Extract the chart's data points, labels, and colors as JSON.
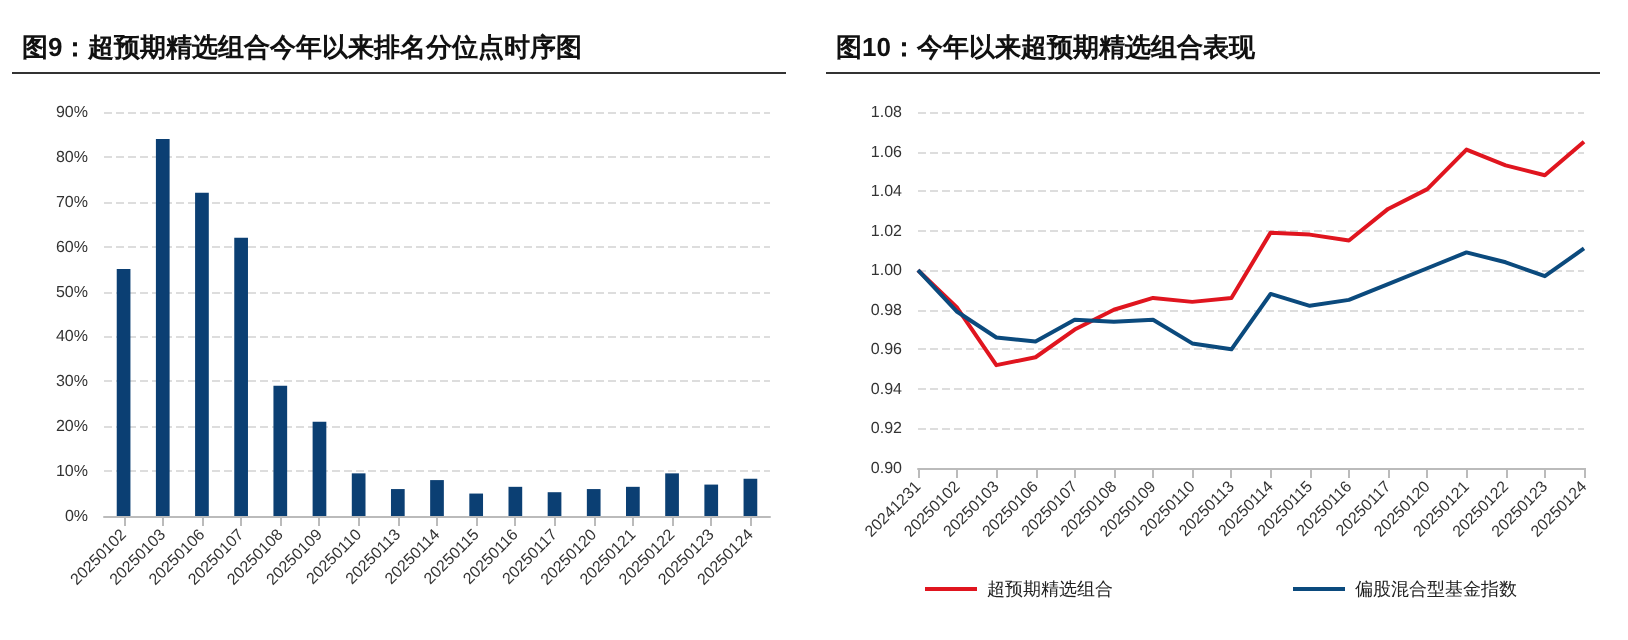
{
  "chart_data": [
    {
      "type": "bar",
      "title": "图9：超预期精选组合今年以来排名分位点时序图",
      "categories": [
        "20250102",
        "20250103",
        "20250106",
        "20250107",
        "20250108",
        "20250109",
        "20250110",
        "20250113",
        "20250114",
        "20250115",
        "20250116",
        "20250117",
        "20250120",
        "20250121",
        "20250122",
        "20250123",
        "20250124"
      ],
      "series": [
        {
          "color": "#0b3f73",
          "values": [
            55,
            84,
            72,
            62,
            29,
            21,
            9.5,
            6,
            8,
            5,
            6.5,
            5.3,
            6,
            6.5,
            9.5,
            7,
            8.3
          ]
        }
      ],
      "ylim": [
        0,
        90
      ],
      "yticks": [
        {
          "value": 0,
          "label": "0%"
        },
        {
          "value": 10,
          "label": "10%"
        },
        {
          "value": 20,
          "label": "20%"
        },
        {
          "value": 30,
          "label": "30%"
        },
        {
          "value": 40,
          "label": "40%"
        },
        {
          "value": 50,
          "label": "50%"
        },
        {
          "value": 60,
          "label": "60%"
        },
        {
          "value": 70,
          "label": "70%"
        },
        {
          "value": 80,
          "label": "80%"
        },
        {
          "value": 90,
          "label": "90%"
        }
      ],
      "grid": "y",
      "legend": false
    },
    {
      "type": "line",
      "title": "图10：今年以来超预期精选组合表现",
      "categories": [
        "20241231",
        "20250102",
        "20250103",
        "20250106",
        "20250107",
        "20250108",
        "20250109",
        "20250110",
        "20250113",
        "20250114",
        "20250115",
        "20250116",
        "20250117",
        "20250120",
        "20250121",
        "20250122",
        "20250123",
        "20250124"
      ],
      "series": [
        {
          "name": "超预期精选组合",
          "color": "#e0151f",
          "values": [
            1.0,
            0.981,
            0.952,
            0.956,
            0.97,
            0.98,
            0.986,
            0.984,
            0.986,
            1.019,
            1.018,
            1.015,
            1.031,
            1.041,
            1.061,
            1.053,
            1.048,
            1.065
          ]
        },
        {
          "name": "偏股混合型基金指数",
          "color": "#0b4a7d",
          "values": [
            1.0,
            0.979,
            0.966,
            0.964,
            0.975,
            0.974,
            0.975,
            0.963,
            0.96,
            0.988,
            0.982,
            0.985,
            0.993,
            1.001,
            1.009,
            1.004,
            0.997,
            1.011
          ]
        }
      ],
      "ylim": [
        0.9,
        1.08
      ],
      "yticks": [
        {
          "value": 0.9,
          "label": "0.90"
        },
        {
          "value": 0.92,
          "label": "0.92"
        },
        {
          "value": 0.94,
          "label": "0.94"
        },
        {
          "value": 0.96,
          "label": "0.96"
        },
        {
          "value": 0.98,
          "label": "0.98"
        },
        {
          "value": 1,
          "label": "1.00"
        },
        {
          "value": 1.02,
          "label": "1.02"
        },
        {
          "value": 1.04,
          "label": "1.04"
        },
        {
          "value": 1.06,
          "label": "1.06"
        },
        {
          "value": 1.08,
          "label": "1.08"
        }
      ],
      "grid": "y",
      "legend": "bottom",
      "marker": "none",
      "line_style": "solid"
    }
  ]
}
